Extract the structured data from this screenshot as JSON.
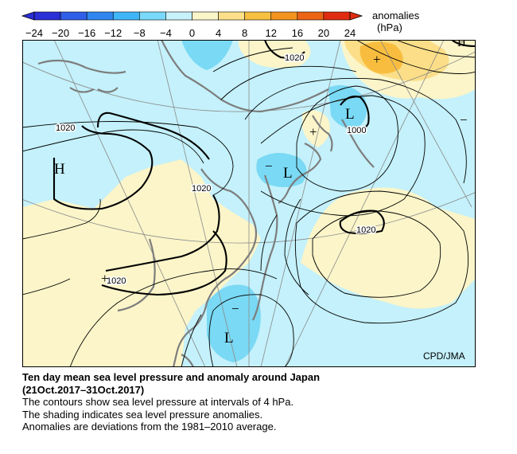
{
  "colorbar": {
    "tick_labels": [
      "−24",
      "−20",
      "−16",
      "−12",
      "−8",
      "−4",
      "0",
      "4",
      "8",
      "12",
      "16",
      "20",
      "24"
    ],
    "unit_line1": "anomalies",
    "unit_line2": "(hPa)",
    "colors": [
      "#2b2fd6",
      "#2f5fe8",
      "#2f86f0",
      "#3fb6f7",
      "#79d9fa",
      "#c7f2fc",
      "#fbf6c9",
      "#fbe089",
      "#f8c040",
      "#f39420",
      "#ec6416",
      "#e02c10"
    ]
  },
  "map": {
    "isobar_labels": [
      "1020",
      "1020",
      "1020",
      "1020",
      "1020",
      "1000"
    ],
    "pressure_centers": [
      "H",
      "L",
      "L",
      "L"
    ],
    "partial_center": "H",
    "anomaly_signs": [
      "+",
      "+",
      "+",
      "−",
      "−",
      "−"
    ],
    "credit": "CPD/JMA",
    "colors": {
      "negative_anomaly": "#c4f1fb",
      "strong_negative_anomaly": "#7ad9f4",
      "positive_anomaly": "#fbf5c9",
      "strong_positive_anomaly": "#fbde87",
      "peak_positive_anomaly": "#f8bd3f",
      "land_outline": "#7d7d7d"
    }
  },
  "caption": {
    "title": "Ten day mean sea level pressure and anomaly around Japan",
    "period": "(21Oct.2017–31Oct.2017)",
    "line1": "The contours show sea level pressure at intervals of 4 hPa.",
    "line2": "The shading indicates sea level pressure anomalies.",
    "line3": "Anomalies are deviations from the 1981–2010 average."
  }
}
